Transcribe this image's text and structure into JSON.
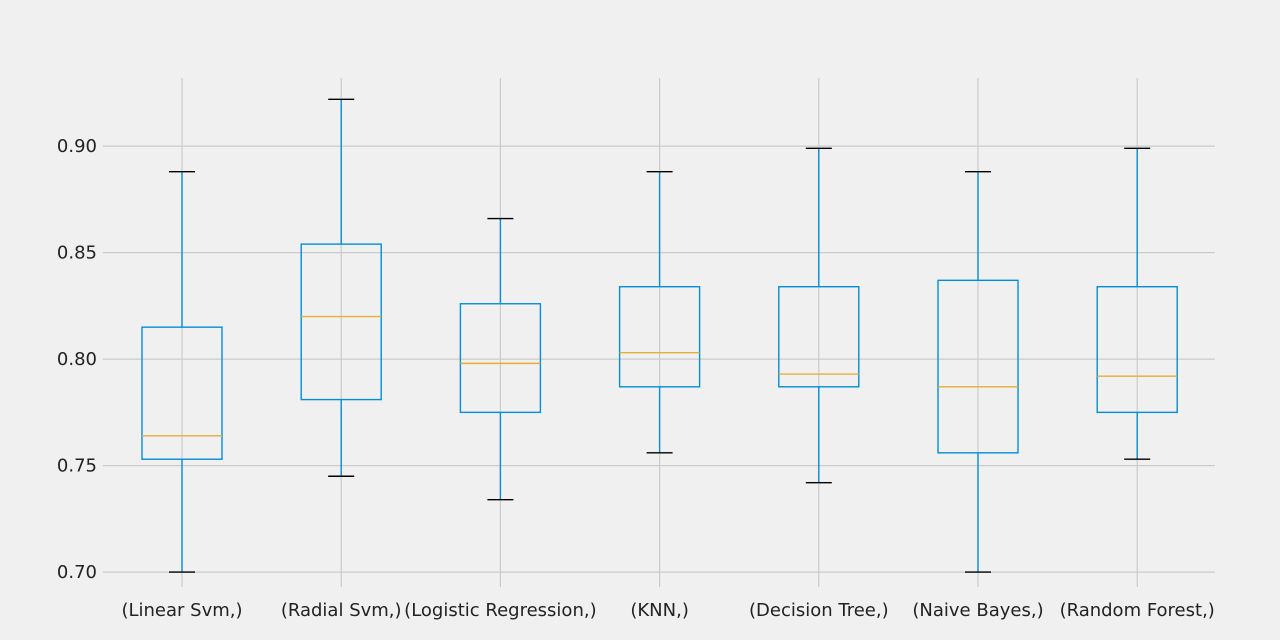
{
  "colors": {
    "background": "#f0f0f0",
    "grid": "#cbcbcb",
    "box": "#008fd5",
    "median": "#e5ae38",
    "cap": "#000000",
    "text": "#222222"
  },
  "chart_data": {
    "type": "box",
    "title": "",
    "xlabel": "",
    "ylabel": "",
    "ylim": [
      0.693,
      0.932
    ],
    "yticks": [
      0.7,
      0.75,
      0.8,
      0.85,
      0.9
    ],
    "ytick_labels": [
      "0.70",
      "0.75",
      "0.80",
      "0.85",
      "0.90"
    ],
    "grid": true,
    "legend": false,
    "categories": [
      "(Linear Svm,)",
      "(Radial Svm,)",
      "(Logistic Regression,)",
      "(KNN,)",
      "(Decision Tree,)",
      "(Naive Bayes,)",
      "(Random Forest,)"
    ],
    "boxes": [
      {
        "whisker_low": 0.7,
        "q1": 0.753,
        "median": 0.764,
        "q3": 0.815,
        "whisker_high": 0.888
      },
      {
        "whisker_low": 0.745,
        "q1": 0.781,
        "median": 0.82,
        "q3": 0.854,
        "whisker_high": 0.922
      },
      {
        "whisker_low": 0.734,
        "q1": 0.775,
        "median": 0.798,
        "q3": 0.826,
        "whisker_high": 0.866
      },
      {
        "whisker_low": 0.756,
        "q1": 0.787,
        "median": 0.803,
        "q3": 0.834,
        "whisker_high": 0.888
      },
      {
        "whisker_low": 0.742,
        "q1": 0.787,
        "median": 0.793,
        "q3": 0.834,
        "whisker_high": 0.899
      },
      {
        "whisker_low": 0.7,
        "q1": 0.756,
        "median": 0.787,
        "q3": 0.837,
        "whisker_high": 0.888
      },
      {
        "whisker_low": 0.753,
        "q1": 0.775,
        "median": 0.792,
        "q3": 0.834,
        "whisker_high": 0.899
      }
    ]
  }
}
